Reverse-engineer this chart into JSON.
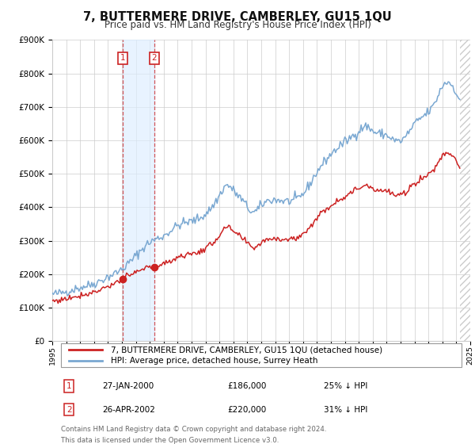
{
  "title": "7, BUTTERMERE DRIVE, CAMBERLEY, GU15 1QU",
  "subtitle": "Price paid vs. HM Land Registry's House Price Index (HPI)",
  "ylim": [
    0,
    900000
  ],
  "yticks": [
    0,
    100000,
    200000,
    300000,
    400000,
    500000,
    600000,
    700000,
    800000,
    900000
  ],
  "ytick_labels": [
    "£0",
    "£100K",
    "£200K",
    "£300K",
    "£400K",
    "£500K",
    "£600K",
    "£700K",
    "£800K",
    "£900K"
  ],
  "xlim": [
    1995,
    2025
  ],
  "hpi_color": "#7aa8d2",
  "price_color": "#cc2222",
  "bg_color": "#ffffff",
  "grid_color": "#cccccc",
  "transaction1": {
    "date_num": 2000.08,
    "price": 186000,
    "label": "27-JAN-2000",
    "label_price": "£186,000",
    "label_pct": "25% ↓ HPI"
  },
  "transaction2": {
    "date_num": 2002.33,
    "price": 220000,
    "label": "26-APR-2002",
    "label_price": "£220,000",
    "label_pct": "31% ↓ HPI"
  },
  "legend_line1": "7, BUTTERMERE DRIVE, CAMBERLEY, GU15 1QU (detached house)",
  "legend_line2": "HPI: Average price, detached house, Surrey Heath",
  "footnote1": "Contains HM Land Registry data © Crown copyright and database right 2024.",
  "footnote2": "This data is licensed under the Open Government Licence v3.0.",
  "hatch_start": 2024.25,
  "shade_start": 2000.08,
  "shade_end": 2002.33,
  "hpi_anchors_x": [
    1995.0,
    1996.0,
    1997.0,
    1998.0,
    1999.0,
    2000.0,
    2001.0,
    2002.0,
    2003.0,
    2004.0,
    2005.0,
    2006.0,
    2007.0,
    2007.5,
    2008.0,
    2008.75,
    2009.5,
    2010.0,
    2011.0,
    2012.0,
    2013.0,
    2014.0,
    2015.0,
    2016.0,
    2017.0,
    2017.5,
    2018.0,
    2019.0,
    2020.0,
    2021.0,
    2022.0,
    2022.5,
    2023.0,
    2023.5,
    2024.0,
    2024.25
  ],
  "hpi_anchors_y": [
    140000,
    148000,
    160000,
    172000,
    192000,
    215000,
    255000,
    295000,
    315000,
    345000,
    358000,
    380000,
    435000,
    465000,
    450000,
    415000,
    385000,
    405000,
    422000,
    418000,
    440000,
    505000,
    558000,
    595000,
    628000,
    642000,
    628000,
    615000,
    598000,
    648000,
    685000,
    715000,
    762000,
    772000,
    742000,
    712000
  ]
}
